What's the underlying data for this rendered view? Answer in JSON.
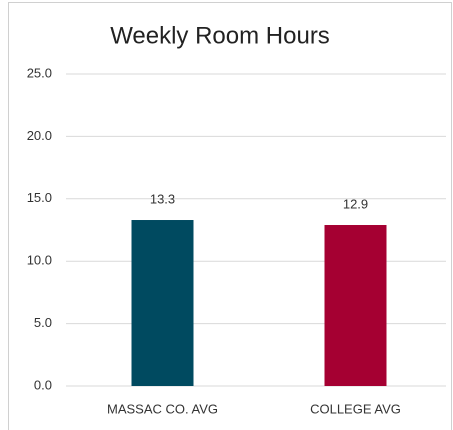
{
  "chart_data": {
    "type": "bar",
    "title": "Weekly Room Hours",
    "categories": [
      "MASSAC CO. AVG",
      "COLLEGE AVG"
    ],
    "values": [
      13.3,
      12.9
    ],
    "colors": [
      "#004a60",
      "#a50032"
    ],
    "ylim": [
      0,
      25
    ],
    "yticks": [
      {
        "value": 0,
        "label": "0.0"
      },
      {
        "value": 5,
        "label": "5.0"
      },
      {
        "value": 10,
        "label": "10.0"
      },
      {
        "value": 15,
        "label": "15.0"
      },
      {
        "value": 20,
        "label": "20.0"
      },
      {
        "value": 25,
        "label": "25.0"
      }
    ],
    "grid": true
  }
}
